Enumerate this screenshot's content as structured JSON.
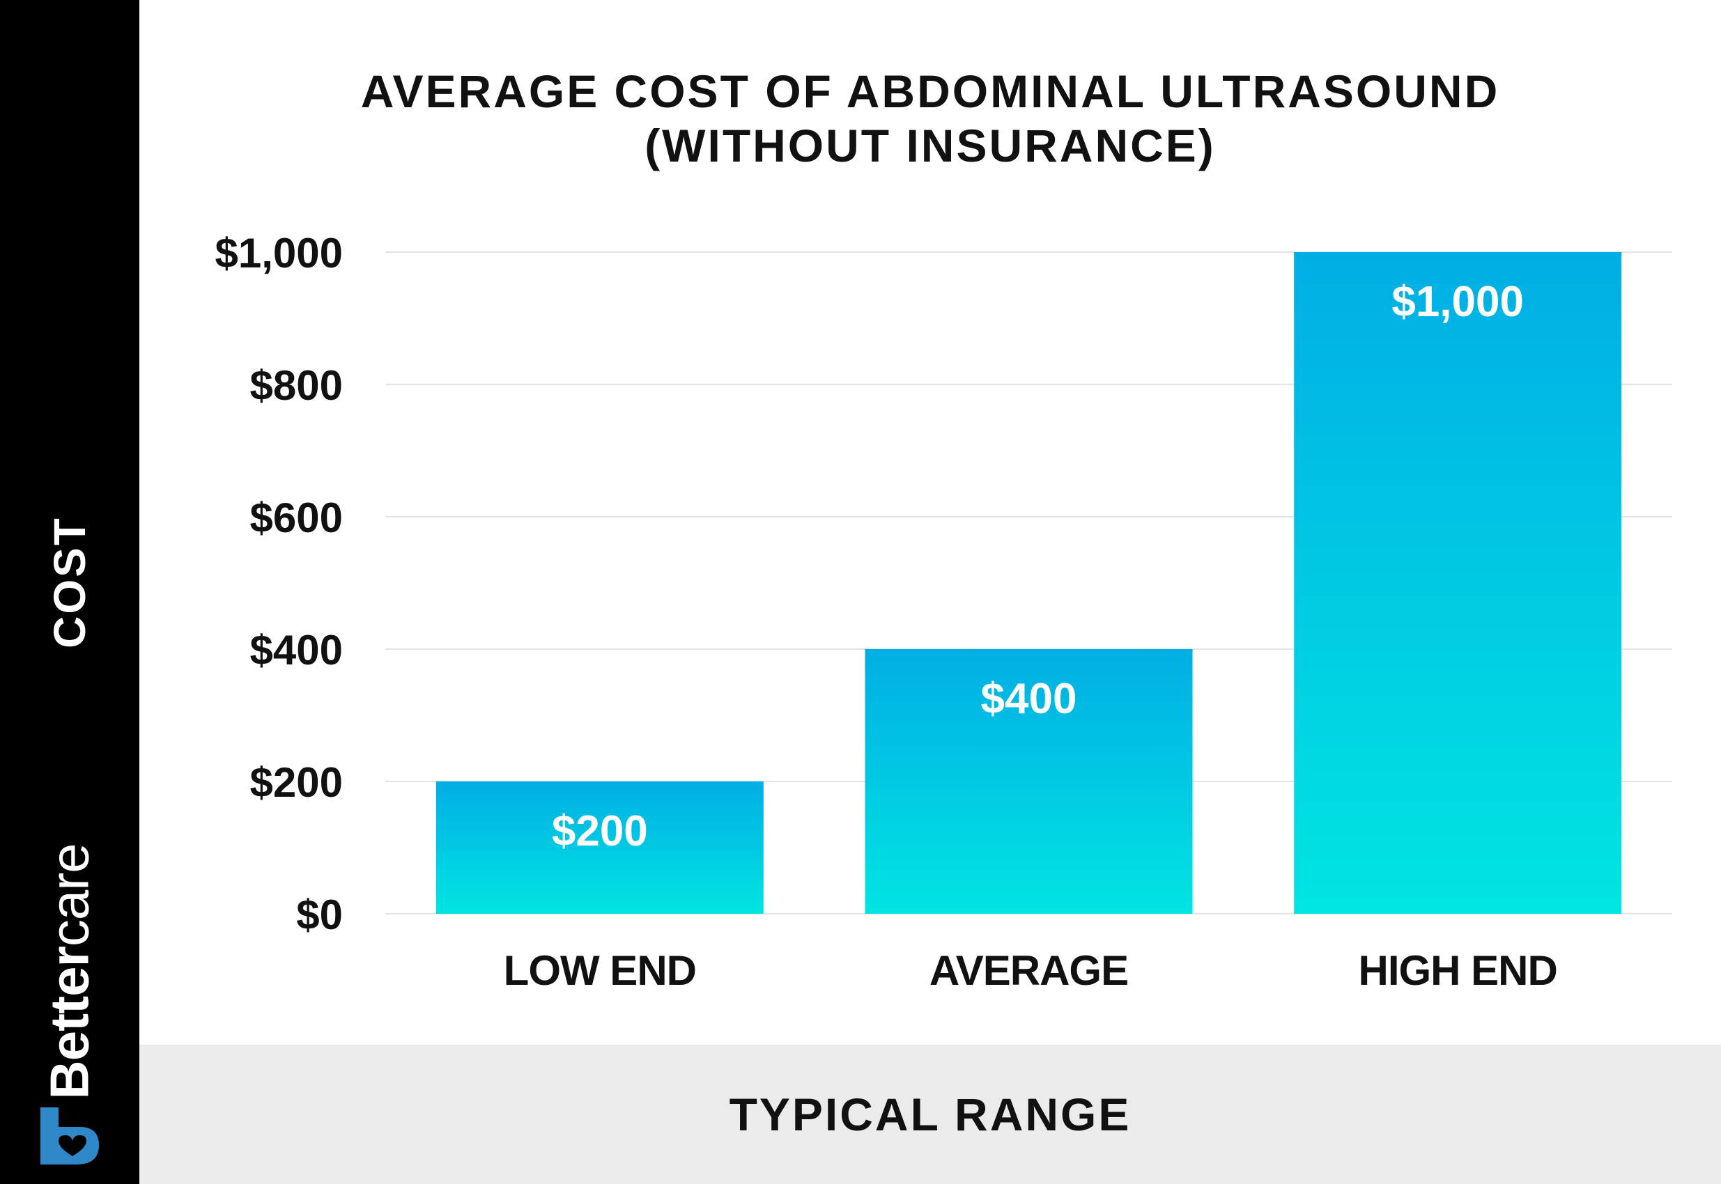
{
  "chart_data": {
    "type": "bar",
    "title": "AVERAGE COST OF ABDOMINAL ULTRASOUND",
    "subtitle": "(WITHOUT INSURANCE)",
    "xlabel": "TYPICAL RANGE",
    "ylabel": "COST",
    "categories": [
      "LOW END",
      "AVERAGE",
      "HIGH END"
    ],
    "values": [
      200,
      400,
      1000
    ],
    "data_labels": [
      "$200",
      "$400",
      "$1,000"
    ],
    "ylim": [
      0,
      1000
    ],
    "yticks": [
      0,
      200,
      400,
      600,
      800,
      1000
    ],
    "ytick_labels": [
      "$0",
      "$200",
      "$400",
      "$600",
      "$800",
      "$1,000"
    ],
    "grid": true,
    "legend": "none",
    "colors": {
      "bar_top": "#00aee4",
      "bar_bottom": "#00e5e2",
      "grid": "#e3e3e3",
      "text": "#111111",
      "label": "#ffffff"
    }
  },
  "brand": {
    "part1": "Better",
    "part2": "care",
    "logo_icon": "bettercare-logo-icon",
    "logo_color": "#2f89c9"
  },
  "colors": {
    "sidebar": "#000000",
    "footer": "#ebebeb"
  }
}
